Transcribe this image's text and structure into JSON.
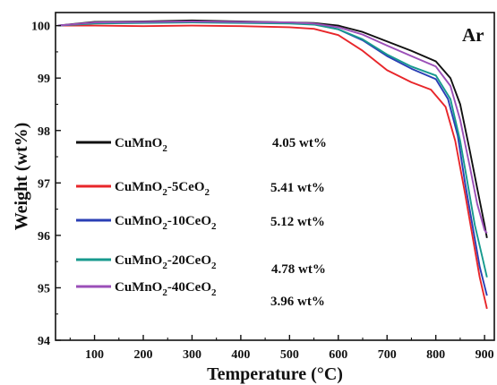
{
  "chart_data": {
    "type": "line",
    "xlabel": "Temperature (°C)",
    "ylabel": "Weight (wt%)",
    "xlim": [
      20,
      920
    ],
    "ylim": [
      94,
      100.25
    ],
    "xticks": [
      100,
      200,
      300,
      400,
      500,
      600,
      700,
      800,
      900
    ],
    "yticks": [
      94,
      95,
      96,
      97,
      98,
      99,
      100
    ],
    "annotation": "Ar",
    "legend_placement": "left-center",
    "grid": false,
    "series": [
      {
        "name": "CuMnO2",
        "sub_parts": [
          [
            "CuMnO",
            false
          ],
          [
            "2",
            true
          ]
        ],
        "loss": "4.05 wt%",
        "color": "#111111",
        "points": [
          [
            25,
            100.0
          ],
          [
            100,
            100.07
          ],
          [
            200,
            100.08
          ],
          [
            300,
            100.1
          ],
          [
            400,
            100.08
          ],
          [
            500,
            100.06
          ],
          [
            550,
            100.05
          ],
          [
            600,
            100.0
          ],
          [
            650,
            99.88
          ],
          [
            700,
            99.7
          ],
          [
            750,
            99.52
          ],
          [
            800,
            99.32
          ],
          [
            830,
            99.0
          ],
          [
            850,
            98.5
          ],
          [
            870,
            97.6
          ],
          [
            885,
            96.9
          ],
          [
            900,
            96.2
          ],
          [
            905,
            95.95
          ]
        ]
      },
      {
        "name": "CuMnO2-5CeO2",
        "sub_parts": [
          [
            "CuMnO",
            false
          ],
          [
            "2",
            true
          ],
          [
            "-5CeO",
            false
          ],
          [
            "2",
            true
          ]
        ],
        "loss": "5.41 wt%",
        "color": "#e8262a",
        "points": [
          [
            25,
            100.0
          ],
          [
            100,
            100.0
          ],
          [
            200,
            99.99
          ],
          [
            300,
            100.0
          ],
          [
            400,
            99.99
          ],
          [
            500,
            99.97
          ],
          [
            550,
            99.94
          ],
          [
            600,
            99.82
          ],
          [
            650,
            99.52
          ],
          [
            700,
            99.15
          ],
          [
            750,
            98.92
          ],
          [
            790,
            98.78
          ],
          [
            820,
            98.45
          ],
          [
            840,
            97.8
          ],
          [
            860,
            96.8
          ],
          [
            875,
            96.0
          ],
          [
            890,
            95.2
          ],
          [
            905,
            94.6
          ]
        ]
      },
      {
        "name": "CuMnO2-10CeO2",
        "sub_parts": [
          [
            "CuMnO",
            false
          ],
          [
            "2",
            true
          ],
          [
            "-10CeO",
            false
          ],
          [
            "2",
            true
          ]
        ],
        "loss": "5.12 wt%",
        "color": "#2a3fb5",
        "points": [
          [
            25,
            100.0
          ],
          [
            100,
            100.05
          ],
          [
            200,
            100.06
          ],
          [
            300,
            100.07
          ],
          [
            400,
            100.06
          ],
          [
            500,
            100.05
          ],
          [
            550,
            100.03
          ],
          [
            600,
            99.93
          ],
          [
            650,
            99.72
          ],
          [
            700,
            99.42
          ],
          [
            750,
            99.18
          ],
          [
            800,
            98.98
          ],
          [
            825,
            98.6
          ],
          [
            845,
            97.9
          ],
          [
            860,
            97.0
          ],
          [
            875,
            96.2
          ],
          [
            890,
            95.4
          ],
          [
            905,
            94.85
          ]
        ]
      },
      {
        "name": "CuMnO2-20CeO2",
        "sub_parts": [
          [
            "CuMnO",
            false
          ],
          [
            "2",
            true
          ],
          [
            "-20CeO",
            false
          ],
          [
            "2",
            true
          ]
        ],
        "loss": "4.78 wt%",
        "color": "#179a8e",
        "points": [
          [
            25,
            100.0
          ],
          [
            100,
            100.04
          ],
          [
            200,
            100.05
          ],
          [
            300,
            100.06
          ],
          [
            400,
            100.05
          ],
          [
            500,
            100.04
          ],
          [
            550,
            100.02
          ],
          [
            600,
            99.93
          ],
          [
            650,
            99.74
          ],
          [
            700,
            99.45
          ],
          [
            750,
            99.22
          ],
          [
            800,
            99.05
          ],
          [
            830,
            98.6
          ],
          [
            850,
            97.8
          ],
          [
            865,
            97.0
          ],
          [
            880,
            96.2
          ],
          [
            895,
            95.6
          ],
          [
            905,
            95.2
          ]
        ]
      },
      {
        "name": "CuMnO2-40CeO2",
        "sub_parts": [
          [
            "CuMnO",
            false
          ],
          [
            "2",
            true
          ],
          [
            "-40CeO",
            false
          ],
          [
            "2",
            true
          ]
        ],
        "loss": "3.96 wt%",
        "color": "#9b4fb8",
        "points": [
          [
            25,
            100.0
          ],
          [
            100,
            100.06
          ],
          [
            200,
            100.07
          ],
          [
            300,
            100.08
          ],
          [
            400,
            100.07
          ],
          [
            500,
            100.06
          ],
          [
            550,
            100.04
          ],
          [
            600,
            99.97
          ],
          [
            650,
            99.83
          ],
          [
            700,
            99.62
          ],
          [
            750,
            99.42
          ],
          [
            800,
            99.22
          ],
          [
            830,
            98.85
          ],
          [
            850,
            98.2
          ],
          [
            870,
            97.3
          ],
          [
            885,
            96.6
          ],
          [
            900,
            96.1
          ],
          [
            905,
            96.04
          ]
        ]
      }
    ]
  }
}
